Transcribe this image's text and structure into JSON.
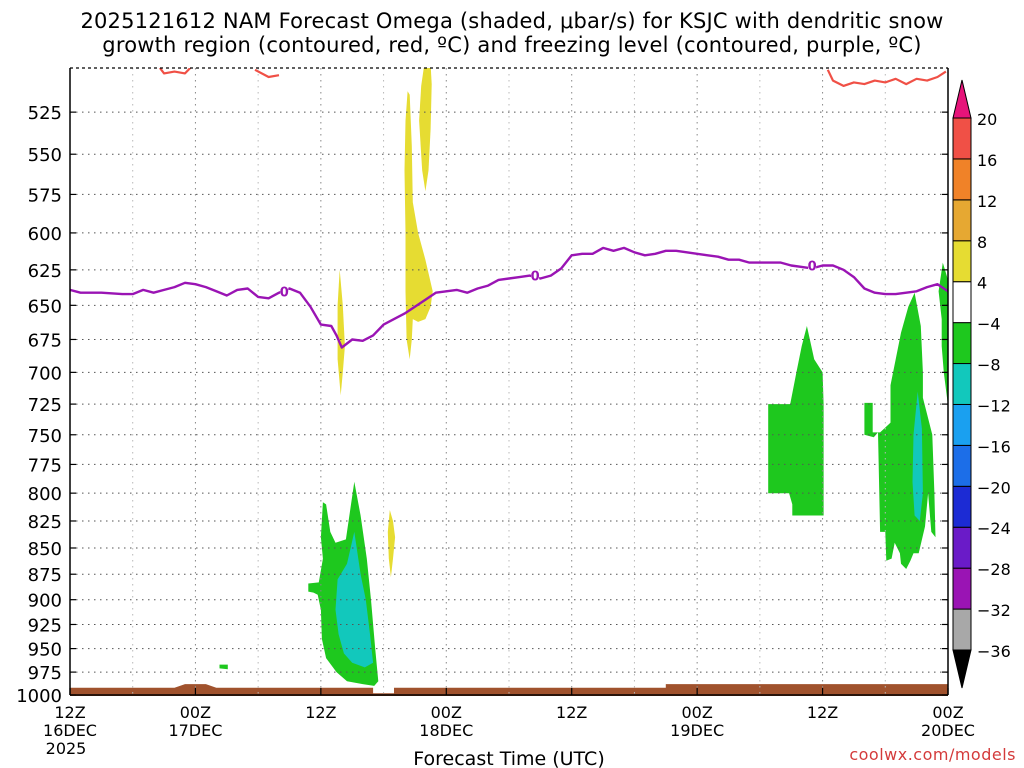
{
  "title_line1": "2025121612 NAM Forecast Omega (shaded, μbar/s) for KSJC with dendritic snow",
  "title_line2": "growth region (contoured, red, ºC) and freezing level (contoured, purple, ºC)",
  "credit": "coolwx.com/models",
  "chart_data": {
    "type": "heatmap",
    "title": "2025121612 NAM Forecast Omega (shaded, μbar/s) for KSJC with dendritic snow growth region (contoured, red, ºC) and freezing level (contoured, purple, ºC)",
    "xlabel": "Forecast Time (UTC)",
    "ylabel": "",
    "x_unit": "forecast hour",
    "xlim": [
      0,
      84
    ],
    "ylim_hpa": [
      1000,
      500
    ],
    "y_ticks": [
      525,
      550,
      575,
      600,
      625,
      650,
      675,
      700,
      725,
      750,
      775,
      800,
      825,
      850,
      875,
      900,
      925,
      950,
      975,
      1000
    ],
    "x_ticks": [
      {
        "fh": 0,
        "label1": "12Z",
        "label2": "16DEC",
        "label3": "2025"
      },
      {
        "fh": 12,
        "label1": "00Z",
        "label2": "17DEC",
        "label3": ""
      },
      {
        "fh": 24,
        "label1": "12Z",
        "label2": "",
        "label3": ""
      },
      {
        "fh": 36,
        "label1": "00Z",
        "label2": "18DEC",
        "label3": ""
      },
      {
        "fh": 48,
        "label1": "12Z",
        "label2": "",
        "label3": ""
      },
      {
        "fh": 60,
        "label1": "00Z",
        "label2": "19DEC",
        "label3": ""
      },
      {
        "fh": 72,
        "label1": "12Z",
        "label2": "",
        "label3": ""
      },
      {
        "fh": 84,
        "label1": "00Z",
        "label2": "20DEC",
        "label3": ""
      }
    ],
    "grid": true,
    "colorbar": {
      "unit": "μbar/s",
      "levels": [
        -36,
        -32,
        -28,
        -24,
        -20,
        -16,
        -12,
        -8,
        -4,
        4,
        8,
        12,
        16,
        20
      ],
      "bands": [
        {
          "from": -40,
          "to": -36,
          "color": "#000000"
        },
        {
          "from": -36,
          "to": -32,
          "color": "#a8a8a8"
        },
        {
          "from": -32,
          "to": -28,
          "color": "#9a14b4"
        },
        {
          "from": -28,
          "to": -24,
          "color": "#6a1bc8"
        },
        {
          "from": -24,
          "to": -20,
          "color": "#1c2bd4"
        },
        {
          "from": -20,
          "to": -16,
          "color": "#1c6ee8"
        },
        {
          "from": -16,
          "to": -12,
          "color": "#1aa0f0"
        },
        {
          "from": -12,
          "to": -8,
          "color": "#12c8bc"
        },
        {
          "from": -8,
          "to": -4,
          "color": "#1ec81e"
        },
        {
          "from": -4,
          "to": 4,
          "color": "#ffffff"
        },
        {
          "from": 4,
          "to": 8,
          "color": "#e6dc32"
        },
        {
          "from": 8,
          "to": 12,
          "color": "#e6a832"
        },
        {
          "from": 12,
          "to": 16,
          "color": "#f08228"
        },
        {
          "from": 16,
          "to": 20,
          "color": "#f05046"
        },
        {
          "from": 20,
          "to": 24,
          "color": "#e6147a"
        }
      ]
    },
    "freezing_level": {
      "label": "0",
      "color": "#9a14b4",
      "points": [
        [
          0,
          639
        ],
        [
          1,
          641
        ],
        [
          3,
          641
        ],
        [
          5,
          642
        ],
        [
          6,
          642
        ],
        [
          7,
          639
        ],
        [
          8,
          641
        ],
        [
          9,
          639
        ],
        [
          10,
          637
        ],
        [
          11,
          634
        ],
        [
          12,
          635
        ],
        [
          13,
          637
        ],
        [
          14,
          640
        ],
        [
          15,
          643
        ],
        [
          16,
          639
        ],
        [
          17,
          638
        ],
        [
          18,
          644
        ],
        [
          19,
          645
        ],
        [
          20,
          641
        ],
        [
          21,
          638
        ],
        [
          22,
          641
        ],
        [
          23,
          651
        ],
        [
          24,
          664
        ],
        [
          25,
          665
        ],
        [
          25.5,
          672
        ],
        [
          26,
          681
        ],
        [
          27,
          675
        ],
        [
          28,
          676
        ],
        [
          29,
          672
        ],
        [
          30,
          664
        ],
        [
          31,
          660
        ],
        [
          32,
          656
        ],
        [
          33,
          651
        ],
        [
          34,
          646
        ],
        [
          35,
          641
        ],
        [
          36,
          640
        ],
        [
          37,
          639
        ],
        [
          38,
          641
        ],
        [
          39,
          638
        ],
        [
          40,
          636
        ],
        [
          41,
          632
        ],
        [
          42,
          631
        ],
        [
          43,
          630
        ],
        [
          44,
          629
        ],
        [
          45,
          631
        ],
        [
          46,
          629
        ],
        [
          47,
          624
        ],
        [
          48,
          615
        ],
        [
          49,
          614
        ],
        [
          50,
          614
        ],
        [
          51,
          610
        ],
        [
          52,
          612
        ],
        [
          53,
          610
        ],
        [
          54,
          613
        ],
        [
          55,
          615
        ],
        [
          56,
          614
        ],
        [
          57,
          612
        ],
        [
          58,
          612
        ],
        [
          59,
          613
        ],
        [
          60,
          614
        ],
        [
          61,
          615
        ],
        [
          62,
          616
        ],
        [
          63,
          618
        ],
        [
          64,
          618
        ],
        [
          65,
          620
        ],
        [
          66,
          620
        ],
        [
          67,
          620
        ],
        [
          68,
          620
        ],
        [
          69,
          622
        ],
        [
          70,
          623
        ],
        [
          71,
          624
        ],
        [
          72,
          622
        ],
        [
          73,
          622
        ],
        [
          74,
          625
        ],
        [
          75,
          630
        ],
        [
          76,
          638
        ],
        [
          77,
          641
        ],
        [
          78,
          642
        ],
        [
          79,
          642
        ],
        [
          80,
          641
        ],
        [
          81,
          640
        ],
        [
          82,
          637
        ],
        [
          83,
          635
        ],
        [
          84,
          640
        ],
        [
          84.3,
          647
        ]
      ],
      "label_positions": [
        [
          20.5,
          640
        ],
        [
          44.5,
          629
        ],
        [
          71,
          622
        ]
      ]
    },
    "dgz_contour": {
      "color": "#f05046",
      "segments": [
        [
          [
            8.6,
            500
          ],
          [
            9,
            503
          ],
          [
            10,
            502
          ],
          [
            11,
            503
          ],
          [
            11.5,
            500
          ]
        ],
        [
          [
            17.7,
            501
          ],
          [
            19,
            505
          ],
          [
            20,
            504
          ]
        ],
        [
          [
            72.5,
            501
          ],
          [
            73,
            507
          ],
          [
            74,
            510
          ],
          [
            75,
            508
          ],
          [
            76,
            509
          ],
          [
            77,
            507
          ],
          [
            78,
            508
          ],
          [
            79,
            506
          ],
          [
            80,
            509
          ],
          [
            81,
            506
          ],
          [
            82,
            507
          ],
          [
            83,
            505
          ],
          [
            83.8,
            502
          ]
        ]
      ]
    },
    "omega_regions": [
      {
        "value_range": [
          4,
          8
        ],
        "color": "#e6dc32",
        "polygon": [
          [
            33.9,
            498
          ],
          [
            34.5,
            498
          ],
          [
            34.6,
            509
          ],
          [
            34.5,
            535
          ],
          [
            34.3,
            560
          ],
          [
            34,
            573
          ],
          [
            33.7,
            560
          ],
          [
            33.4,
            530
          ],
          [
            33.6,
            510
          ]
        ]
      },
      {
        "value_range": [
          4,
          8
        ],
        "color": "#e6dc32",
        "polygon": [
          [
            32.3,
            513
          ],
          [
            32.5,
            515
          ],
          [
            32.7,
            545
          ],
          [
            32.8,
            580
          ],
          [
            33.3,
            600
          ],
          [
            34,
            618
          ],
          [
            34.7,
            640
          ],
          [
            34.5,
            651
          ],
          [
            34,
            660
          ],
          [
            33.3,
            662
          ],
          [
            32.8,
            660
          ],
          [
            32.7,
            675
          ],
          [
            32.5,
            690
          ],
          [
            32.2,
            675
          ],
          [
            32.1,
            640
          ],
          [
            32.1,
            600
          ],
          [
            32,
            560
          ],
          [
            32.1,
            530
          ]
        ]
      },
      {
        "value_range": [
          4,
          8
        ],
        "color": "#e6dc32",
        "polygon": [
          [
            25.8,
            625
          ],
          [
            26.1,
            650
          ],
          [
            26.3,
            680
          ],
          [
            26.1,
            700
          ],
          [
            25.9,
            718
          ],
          [
            25.6,
            690
          ],
          [
            25.6,
            650
          ]
        ]
      },
      {
        "value_range": [
          4,
          8
        ],
        "color": "#e6dc32",
        "polygon": [
          [
            30.6,
            815
          ],
          [
            30.9,
            825
          ],
          [
            31.1,
            840
          ],
          [
            30.9,
            860
          ],
          [
            30.7,
            878
          ],
          [
            30.5,
            860
          ],
          [
            30.4,
            835
          ]
        ]
      },
      {
        "value_range": [
          -8,
          -4
        ],
        "color": "#1ec81e",
        "polygon": [
          [
            24.2,
            808
          ],
          [
            24.5,
            810
          ],
          [
            24.9,
            835
          ],
          [
            25.4,
            845
          ],
          [
            26.4,
            842
          ],
          [
            27.2,
            790
          ],
          [
            27.8,
            820
          ],
          [
            28.4,
            860
          ],
          [
            28.8,
            900
          ],
          [
            29.2,
            950
          ],
          [
            29.5,
            985
          ],
          [
            29.1,
            990
          ],
          [
            28,
            988
          ],
          [
            26.5,
            985
          ],
          [
            25.5,
            975
          ],
          [
            24.5,
            960
          ],
          [
            24.1,
            940
          ],
          [
            24,
            910
          ],
          [
            23.7,
            895
          ],
          [
            23.3,
            893
          ],
          [
            22.8,
            892
          ],
          [
            22.8,
            884
          ],
          [
            23.8,
            883
          ],
          [
            24.2,
            860
          ],
          [
            24,
            840
          ]
        ]
      },
      {
        "value_range": [
          -8,
          -4
        ],
        "color": "#1ec81e",
        "polygon": [
          [
            14.3,
            967
          ],
          [
            15.1,
            967
          ],
          [
            15.1,
            972
          ],
          [
            14.3,
            971
          ]
        ]
      },
      {
        "value_range": [
          -8,
          -4
        ],
        "color": "#1ec81e",
        "polygon": [
          [
            66.8,
            725
          ],
          [
            68.9,
            725
          ],
          [
            69.5,
            700
          ],
          [
            70,
            680
          ],
          [
            70.5,
            665
          ],
          [
            71.2,
            690
          ],
          [
            72,
            700
          ],
          [
            72.1,
            725
          ],
          [
            72.1,
            820
          ],
          [
            69.1,
            820
          ],
          [
            69.1,
            810
          ],
          [
            68.8,
            800
          ],
          [
            66.8,
            800
          ]
        ]
      },
      {
        "value_range": [
          -8,
          -4
        ],
        "color": "#1ec81e",
        "polygon": [
          [
            76,
            724
          ],
          [
            76.8,
            724
          ],
          [
            76.8,
            748
          ],
          [
            77.5,
            748
          ],
          [
            78.5,
            740
          ],
          [
            78.5,
            710
          ],
          [
            79,
            690
          ],
          [
            79.5,
            670
          ],
          [
            80.2,
            651
          ],
          [
            80.8,
            641
          ],
          [
            81.4,
            665
          ],
          [
            81.6,
            700
          ],
          [
            81.6,
            720
          ],
          [
            82.5,
            750
          ],
          [
            82.7,
            800
          ],
          [
            82.8,
            840
          ],
          [
            82.4,
            835
          ],
          [
            82.1,
            800
          ],
          [
            81.8,
            830
          ],
          [
            81.2,
            855
          ],
          [
            80.7,
            855
          ],
          [
            80.4,
            862
          ],
          [
            80,
            870
          ],
          [
            79.5,
            865
          ],
          [
            79.4,
            855
          ],
          [
            78.9,
            845
          ],
          [
            78.6,
            860
          ],
          [
            78.1,
            862
          ],
          [
            78,
            835
          ],
          [
            77.5,
            835
          ],
          [
            77.3,
            748
          ],
          [
            76.9,
            752
          ],
          [
            76,
            750
          ]
        ]
      },
      {
        "value_range": [
          -8,
          -4
        ],
        "color": "#1ec81e",
        "polygon": [
          [
            83.1,
            640
          ],
          [
            83.5,
            620
          ],
          [
            84,
            632
          ],
          [
            84.3,
            660
          ],
          [
            84.2,
            740
          ],
          [
            83.9,
            720
          ],
          [
            83.6,
            700
          ],
          [
            83.4,
            680
          ],
          [
            83.4,
            660
          ]
        ]
      },
      {
        "value_range": [
          -12,
          -8
        ],
        "color": "#12c8bc",
        "polygon": [
          [
            26.5,
            865
          ],
          [
            27.2,
            835
          ],
          [
            27.8,
            875
          ],
          [
            28.3,
            900
          ],
          [
            28.7,
            935
          ],
          [
            29,
            965
          ],
          [
            28.2,
            970
          ],
          [
            27,
            965
          ],
          [
            26.2,
            955
          ],
          [
            25.7,
            935
          ],
          [
            25.4,
            910
          ],
          [
            25.6,
            880
          ]
        ]
      },
      {
        "value_range": [
          -12,
          -8
        ],
        "color": "#12c8bc",
        "polygon": [
          [
            80.7,
            750
          ],
          [
            81.1,
            715
          ],
          [
            81.5,
            745
          ],
          [
            81.6,
            800
          ],
          [
            81.3,
            825
          ],
          [
            80.8,
            820
          ],
          [
            80.6,
            790
          ]
        ]
      }
    ],
    "ground": {
      "color": "#a0522d",
      "top_profile": [
        [
          0,
          992
        ],
        [
          10,
          992
        ],
        [
          11,
          988
        ],
        [
          13,
          988
        ],
        [
          14,
          992
        ],
        [
          29,
          992
        ],
        [
          29,
          998
        ],
        [
          31,
          998
        ],
        [
          31,
          992
        ],
        [
          57,
          992
        ],
        [
          57,
          988
        ],
        [
          84,
          988
        ]
      ]
    }
  }
}
